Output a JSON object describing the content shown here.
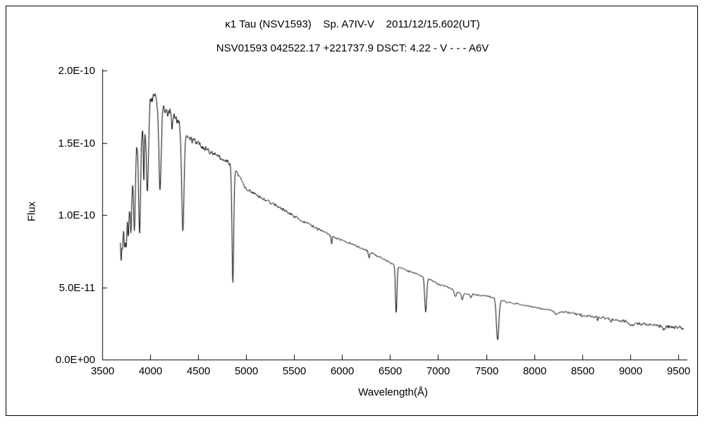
{
  "chart_data": {
    "type": "line",
    "title": "κ1 Tau (NSV1593)    Sp. A7IV-V    2011/12/15.602(UT)",
    "subtitle": "NSV01593 042522.17 +221737.9 DSCT: 4.22 - V - - - A6V",
    "xlabel": "Wavelength(Å)",
    "ylabel": "Flux",
    "xlim": [
      3500,
      9560
    ],
    "ylim": [
      0,
      2e-10
    ],
    "x_ticks": [
      3500,
      4000,
      4500,
      5000,
      5500,
      6000,
      6500,
      7000,
      7500,
      8000,
      8500,
      9000,
      9500
    ],
    "y_ticks": [
      {
        "v": 0,
        "label": "0.0E+00"
      },
      {
        "v": 5e-11,
        "label": "5.0E-11"
      },
      {
        "v": 1e-10,
        "label": "1.0E-10"
      },
      {
        "v": 1.5e-10,
        "label": "1.5E-10"
      },
      {
        "v": 2e-10,
        "label": "2.0E-10"
      }
    ],
    "grid": false,
    "legend": "none",
    "line_color": "#000000",
    "flux_unit": 1e-10,
    "wavelength_range": [
      3690,
      9560
    ],
    "sample_step_A": 4,
    "continuum_points": [
      [
        3690,
        0.95
      ],
      [
        3720,
        1.05
      ],
      [
        3760,
        1.18
      ],
      [
        3800,
        1.32
      ],
      [
        3850,
        1.46
      ],
      [
        3900,
        1.56
      ],
      [
        3950,
        1.66
      ],
      [
        4000,
        1.79
      ],
      [
        4040,
        1.83
      ],
      [
        4080,
        1.8
      ],
      [
        4150,
        1.73
      ],
      [
        4250,
        1.68
      ],
      [
        4320,
        1.62
      ],
      [
        4400,
        1.53
      ],
      [
        4500,
        1.5
      ],
      [
        4600,
        1.45
      ],
      [
        4700,
        1.41
      ],
      [
        4800,
        1.37
      ],
      [
        4900,
        1.3
      ],
      [
        5000,
        1.18
      ],
      [
        5060,
        1.16
      ],
      [
        5150,
        1.12
      ],
      [
        5300,
        1.07
      ],
      [
        5500,
        0.99
      ],
      [
        5700,
        0.92
      ],
      [
        5900,
        0.85
      ],
      [
        6100,
        0.8
      ],
      [
        6300,
        0.74
      ],
      [
        6500,
        0.67
      ],
      [
        6700,
        0.61
      ],
      [
        6900,
        0.56
      ],
      [
        7000,
        0.52
      ],
      [
        7100,
        0.5
      ],
      [
        7200,
        0.47
      ],
      [
        7300,
        0.455
      ],
      [
        7500,
        0.44
      ],
      [
        7620,
        0.425
      ],
      [
        7700,
        0.4
      ],
      [
        7900,
        0.375
      ],
      [
        8100,
        0.35
      ],
      [
        8300,
        0.33
      ],
      [
        8500,
        0.31
      ],
      [
        8700,
        0.29
      ],
      [
        8900,
        0.27
      ],
      [
        9100,
        0.25
      ],
      [
        9300,
        0.235
      ],
      [
        9500,
        0.22
      ],
      [
        9560,
        0.215
      ]
    ],
    "absorption_lines": [
      {
        "center": 3697,
        "depth": 0.3,
        "sigma": 6
      },
      {
        "center": 3712,
        "depth": 0.25,
        "sigma": 6
      },
      {
        "center": 3734,
        "depth": 0.28,
        "sigma": 7
      },
      {
        "center": 3750,
        "depth": 0.28,
        "sigma": 7
      },
      {
        "center": 3771,
        "depth": 0.3,
        "sigma": 8
      },
      {
        "center": 3798,
        "depth": 0.33,
        "sigma": 9
      },
      {
        "center": 3835,
        "depth": 0.36,
        "sigma": 10
      },
      {
        "center": 3889,
        "depth": 0.42,
        "sigma": 10
      },
      {
        "center": 3933,
        "depth": 0.25,
        "sigma": 5
      },
      {
        "center": 3970,
        "depth": 0.32,
        "sigma": 11
      },
      {
        "center": 4102,
        "depth": 0.34,
        "sigma": 12
      },
      {
        "center": 4227,
        "depth": 0.06,
        "sigma": 4
      },
      {
        "center": 4340,
        "depth": 0.44,
        "sigma": 12
      },
      {
        "center": 4861,
        "depth": 0.6,
        "sigma": 9
      },
      {
        "center": 5890,
        "depth": 0.06,
        "sigma": 5
      },
      {
        "center": 6280,
        "depth": 0.05,
        "sigma": 6
      },
      {
        "center": 6563,
        "depth": 0.5,
        "sigma": 8
      },
      {
        "center": 6870,
        "depth": 0.42,
        "sigma": 10
      },
      {
        "center": 7180,
        "depth": 0.08,
        "sigma": 10
      },
      {
        "center": 7250,
        "depth": 0.1,
        "sigma": 9
      },
      {
        "center": 7340,
        "depth": 0.05,
        "sigma": 8
      },
      {
        "center": 7620,
        "depth": 0.68,
        "sigma": 13
      },
      {
        "center": 8230,
        "depth": 0.08,
        "sigma": 18
      },
      {
        "center": 8498,
        "depth": 0.05,
        "sigma": 5
      },
      {
        "center": 8542,
        "depth": 0.06,
        "sigma": 5
      },
      {
        "center": 8662,
        "depth": 0.06,
        "sigma": 5
      },
      {
        "center": 8800,
        "depth": 0.05,
        "sigma": 8
      },
      {
        "center": 9020,
        "depth": 0.1,
        "sigma": 25
      },
      {
        "center": 9350,
        "depth": 0.07,
        "sigma": 20
      }
    ],
    "noise_profile": [
      [
        3690,
        0.05
      ],
      [
        3950,
        0.03
      ],
      [
        4300,
        0.018
      ],
      [
        5000,
        0.012
      ],
      [
        6500,
        0.012
      ],
      [
        7400,
        0.015
      ],
      [
        8300,
        0.025
      ],
      [
        8900,
        0.045
      ],
      [
        9300,
        0.06
      ],
      [
        9560,
        0.08
      ]
    ]
  }
}
